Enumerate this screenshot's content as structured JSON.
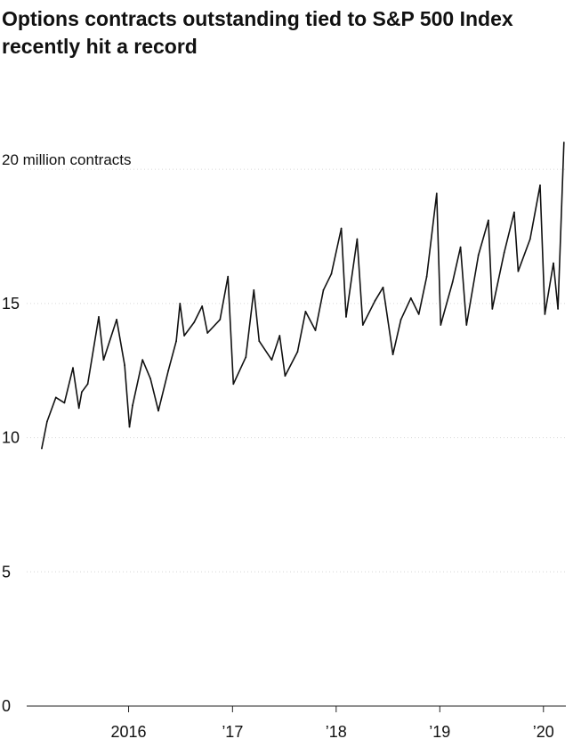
{
  "chart_data": {
    "type": "line",
    "title": "Options contracts outstanding tied to S&P 500 Index recently hit a record",
    "y_unit_label": "20 million contracts",
    "ylim": [
      0,
      21
    ],
    "y_ticks": [
      0,
      5,
      10,
      15,
      20
    ],
    "y_tick_labels": [
      "0",
      "5",
      "10",
      "15",
      "20"
    ],
    "x_ticks": [
      "2016-01-01",
      "2017-01-01",
      "2018-01-01",
      "2019-01-01",
      "2020-01-01"
    ],
    "x_tick_labels": [
      "2016",
      "’17",
      "’18",
      "’19",
      "’20"
    ],
    "colors": {
      "line": "#111111",
      "text": "#111111"
    },
    "series": [
      {
        "values": [
          [
            "2015-03-01",
            9.6
          ],
          [
            "2015-03-20",
            10.6
          ],
          [
            "2015-04-20",
            11.5
          ],
          [
            "2015-05-20",
            11.3
          ],
          [
            "2015-06-19",
            12.6
          ],
          [
            "2015-07-10",
            11.1
          ],
          [
            "2015-07-20",
            11.7
          ],
          [
            "2015-08-10",
            12.0
          ],
          [
            "2015-09-18",
            14.5
          ],
          [
            "2015-10-05",
            12.9
          ],
          [
            "2015-11-20",
            14.4
          ],
          [
            "2015-12-18",
            12.7
          ],
          [
            "2016-01-04",
            10.4
          ],
          [
            "2016-01-15",
            11.2
          ],
          [
            "2016-02-19",
            12.9
          ],
          [
            "2016-03-18",
            12.2
          ],
          [
            "2016-04-15",
            11.0
          ],
          [
            "2016-05-20",
            12.5
          ],
          [
            "2016-06-17",
            13.6
          ],
          [
            "2016-06-30",
            15.0
          ],
          [
            "2016-07-15",
            13.8
          ],
          [
            "2016-08-19",
            14.3
          ],
          [
            "2016-09-16",
            14.9
          ],
          [
            "2016-10-05",
            13.9
          ],
          [
            "2016-11-18",
            14.4
          ],
          [
            "2016-12-16",
            16.0
          ],
          [
            "2017-01-04",
            12.0
          ],
          [
            "2017-02-17",
            13.0
          ],
          [
            "2017-03-17",
            15.5
          ],
          [
            "2017-04-05",
            13.6
          ],
          [
            "2017-05-19",
            12.9
          ],
          [
            "2017-06-16",
            13.8
          ],
          [
            "2017-07-05",
            12.3
          ],
          [
            "2017-08-18",
            13.2
          ],
          [
            "2017-09-15",
            14.7
          ],
          [
            "2017-10-20",
            14.0
          ],
          [
            "2017-11-17",
            15.5
          ],
          [
            "2017-12-15",
            16.1
          ],
          [
            "2018-01-19",
            17.8
          ],
          [
            "2018-02-05",
            14.5
          ],
          [
            "2018-03-16",
            17.4
          ],
          [
            "2018-04-05",
            14.2
          ],
          [
            "2018-05-18",
            15.1
          ],
          [
            "2018-06-15",
            15.6
          ],
          [
            "2018-07-20",
            13.1
          ],
          [
            "2018-08-17",
            14.4
          ],
          [
            "2018-09-21",
            15.2
          ],
          [
            "2018-10-19",
            14.6
          ],
          [
            "2018-11-16",
            16.0
          ],
          [
            "2018-12-21",
            19.1
          ],
          [
            "2019-01-04",
            14.2
          ],
          [
            "2019-02-15",
            15.8
          ],
          [
            "2019-03-15",
            17.1
          ],
          [
            "2019-04-05",
            14.2
          ],
          [
            "2019-05-17",
            16.8
          ],
          [
            "2019-06-21",
            18.1
          ],
          [
            "2019-07-05",
            14.8
          ],
          [
            "2019-08-16",
            16.9
          ],
          [
            "2019-09-20",
            18.4
          ],
          [
            "2019-10-04",
            16.2
          ],
          [
            "2019-11-15",
            17.4
          ],
          [
            "2019-12-20",
            19.4
          ],
          [
            "2020-01-06",
            14.6
          ],
          [
            "2020-02-05",
            16.5
          ],
          [
            "2020-02-21",
            14.8
          ],
          [
            "2020-03-13",
            21.0
          ]
        ]
      }
    ],
    "grid": true,
    "legend": "none"
  }
}
